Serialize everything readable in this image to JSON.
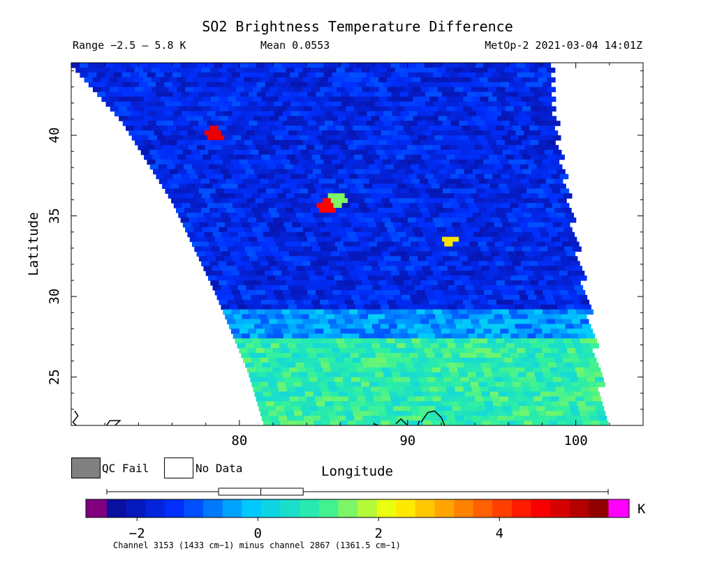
{
  "header": {
    "title": "SO2 Brightness Temperature Difference",
    "range": "Range −2.5 – 5.8 K",
    "mean": "Mean 0.0553",
    "satellite": "MetOp-2 2021-03-04 14:01Z"
  },
  "legend": {
    "qc_fail_label": "QC Fail",
    "no_data_label": "No Data",
    "qc_fail_color": "#808080",
    "no_data_color": "#ffffff"
  },
  "caption": "Channel 3153 (1433 cm−1) minus channel 2867 (1361.5 cm−1)",
  "chart_data": {
    "type": "heatmap",
    "title": "SO2 Brightness Temperature Difference",
    "xlabel": "Longitude",
    "ylabel": "Latitude",
    "xlim": [
      70,
      104
    ],
    "ylim": [
      22,
      44.5
    ],
    "x_ticks": [
      80,
      90,
      100
    ],
    "y_ticks": [
      25,
      30,
      35,
      40
    ],
    "swath_edges": {
      "left": [
        [
          70,
          44.5
        ],
        [
          73,
          41
        ],
        [
          76,
          36
        ],
        [
          78.5,
          30.5
        ],
        [
          80.5,
          25.5
        ],
        [
          81.5,
          22
        ]
      ],
      "right": [
        [
          98.3,
          44.5
        ],
        [
          98.7,
          40
        ],
        [
          99.5,
          35
        ],
        [
          100.4,
          30
        ],
        [
          101.2,
          25.5
        ],
        [
          101.5,
          22
        ]
      ]
    },
    "field_regions": [
      {
        "lat_from": 44.5,
        "lat_to": 29.5,
        "value": -1.6
      },
      {
        "lat_from": 29.5,
        "lat_to": 27.5,
        "value": -0.5
      },
      {
        "lat_from": 27.5,
        "lat_to": 22,
        "value": 0.9
      }
    ],
    "hotspots": [
      {
        "lon": 85.0,
        "lat": 35.8,
        "value": 4.6
      },
      {
        "lon": 85.6,
        "lat": 36.1,
        "value": 1.5
      },
      {
        "lon": 92.2,
        "lat": 33.6,
        "value": 2.5
      },
      {
        "lon": 78.2,
        "lat": 40.3,
        "value": 4.8
      }
    ],
    "colorbar": {
      "unit": "K",
      "range": [
        -2.5,
        5.8
      ],
      "ticks": [
        -2,
        0,
        2,
        4
      ],
      "colors": [
        "#0a0a90",
        "#0030ff",
        "#00c8ff",
        "#30f0a0",
        "#ffff00",
        "#ff8000",
        "#ff0000",
        "#800000"
      ],
      "underflow_color": "#800080",
      "overflow_color": "#ff00ff",
      "boxplot": {
        "min": -2.5,
        "q1": -0.65,
        "median": 0.05,
        "q3": 0.75,
        "max": 5.8
      }
    }
  }
}
